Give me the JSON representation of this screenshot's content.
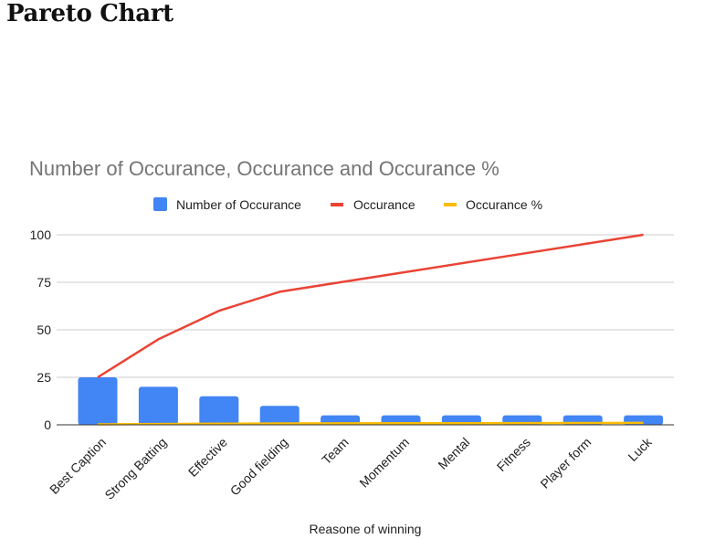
{
  "page": {
    "heading": "Pareto Chart"
  },
  "chart_data": {
    "type": "bar",
    "title": "Number of Occurance, Occurance  and Occurance %",
    "xlabel": "Reasone of winning",
    "ylabel": "",
    "ylim": [
      0,
      100
    ],
    "yticks": [
      0,
      25,
      50,
      75,
      100
    ],
    "grid": true,
    "legend_position": "top",
    "categories": [
      "Best Caption",
      "Strong Batting",
      "Effective",
      "Good fielding",
      "Team",
      "Momentum",
      "Mental",
      "Fitness",
      "Player form",
      "Luck"
    ],
    "series": [
      {
        "name": "Number of Occurance",
        "type": "bar",
        "color": "#4285f4",
        "values": [
          25,
          20,
          15,
          10,
          5,
          5,
          5,
          5,
          5,
          5
        ]
      },
      {
        "name": "Occurance",
        "type": "line",
        "color": "#ea4335",
        "values": [
          25,
          45,
          60,
          70,
          75,
          80,
          85,
          90,
          95,
          100
        ]
      },
      {
        "name": "Occurance %",
        "type": "line",
        "color": "#fbbc04",
        "values": [
          0.25,
          0.45,
          0.6,
          0.7,
          0.75,
          0.8,
          0.85,
          0.9,
          0.95,
          1
        ]
      }
    ]
  }
}
